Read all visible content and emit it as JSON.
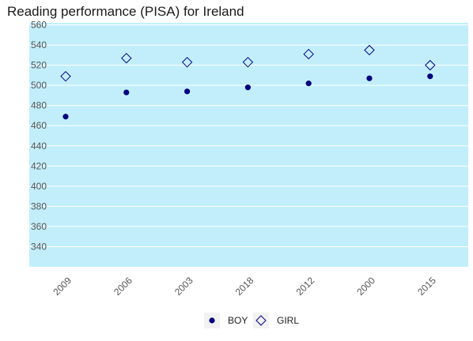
{
  "chart_data": {
    "type": "scatter",
    "title": "Reading performance (PISA) for Ireland",
    "xlabel": "",
    "ylabel": "",
    "categories": [
      "2009",
      "2006",
      "2003",
      "2018",
      "2012",
      "2000",
      "2015"
    ],
    "yticks": [
      340,
      360,
      380,
      400,
      420,
      440,
      460,
      480,
      500,
      520,
      540,
      560
    ],
    "ylim": [
      320,
      562
    ],
    "grid": true,
    "legend_position": "bottom-center",
    "series": [
      {
        "name": "BOY",
        "marker": "circle",
        "color": "#000080",
        "values": [
          469,
          493,
          494,
          498,
          502,
          507,
          509
        ]
      },
      {
        "name": "GIRL",
        "marker": "diamond",
        "color": "#000080",
        "values": [
          509,
          527,
          523,
          523,
          531,
          535,
          520
        ]
      }
    ],
    "colors": {
      "panel": "#c2eefb",
      "gridline": "#ffffff",
      "ticklabel": "#555555"
    }
  }
}
